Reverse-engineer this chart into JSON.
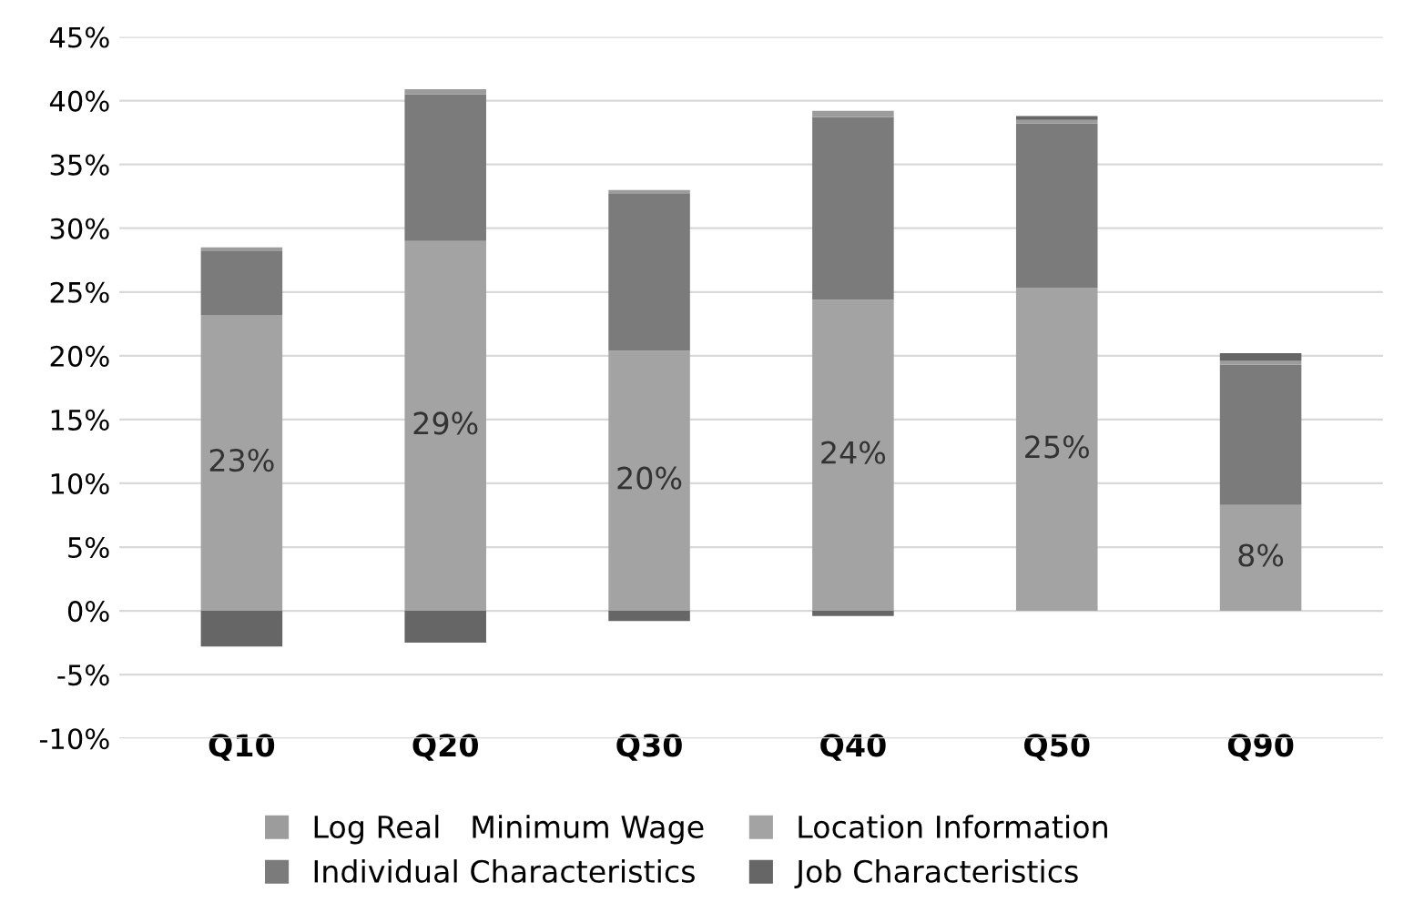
{
  "chart_data": {
    "type": "bar",
    "stacked": true,
    "categories": [
      "Q10",
      "Q20",
      "Q30",
      "Q40",
      "Q50",
      "Q90"
    ],
    "series": [
      {
        "name": "Location Information",
        "color": "#a3a3a3",
        "values": [
          23.2,
          29.0,
          20.4,
          24.4,
          25.3,
          8.3
        ],
        "value_labels": [
          "23%",
          "29%",
          "20%",
          "24%",
          "25%",
          "8%"
        ]
      },
      {
        "name": "Individual Characteristics",
        "color": "#7b7b7b",
        "values": [
          5.0,
          11.5,
          12.3,
          14.3,
          12.9,
          11.0
        ]
      },
      {
        "name": "Log Real   Minimum Wage",
        "color": "#9c9c9c",
        "values": [
          0.3,
          0.4,
          0.3,
          0.5,
          0.3,
          0.3
        ]
      },
      {
        "name": "Job Characteristics",
        "color": "#666666",
        "values": [
          -2.8,
          -2.5,
          -0.8,
          -0.4,
          0.3,
          0.6
        ]
      }
    ],
    "ylim": [
      -10,
      45
    ],
    "yticks": [
      {
        "value": -10,
        "label": "-10%"
      },
      {
        "value": -5,
        "label": "-5%"
      },
      {
        "value": 0,
        "label": "0%"
      },
      {
        "value": 5,
        "label": "5%"
      },
      {
        "value": 10,
        "label": "10%"
      },
      {
        "value": 15,
        "label": "15%"
      },
      {
        "value": 20,
        "label": "20%"
      },
      {
        "value": 25,
        "label": "25%"
      },
      {
        "value": 30,
        "label": "30%"
      },
      {
        "value": 35,
        "label": "35%"
      },
      {
        "value": 40,
        "label": "40%"
      },
      {
        "value": 45,
        "label": "45%"
      }
    ],
    "grid": "y",
    "legend": "bottom"
  }
}
